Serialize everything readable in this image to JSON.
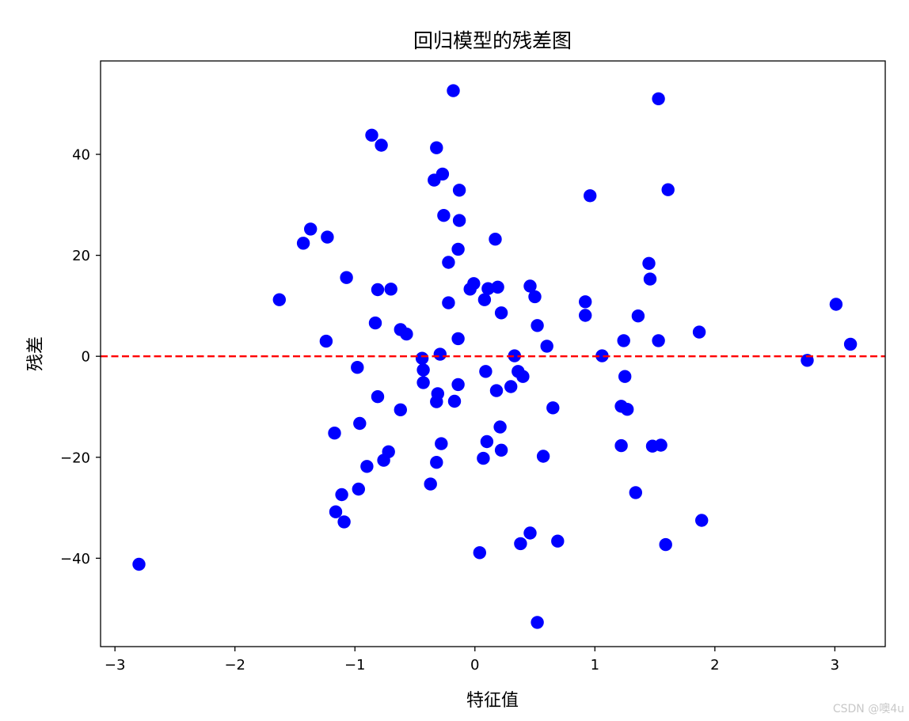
{
  "chart_data": {
    "type": "scatter",
    "title": "回归模型的残差图",
    "xlabel": "特征值",
    "ylabel": "残差",
    "xlim": [
      -3.12,
      3.42
    ],
    "ylim": [
      -57.5,
      58.5
    ],
    "xticks": [
      -3,
      -2,
      -1,
      0,
      1,
      2,
      3
    ],
    "xtick_labels": [
      "−3",
      "−2",
      "−1",
      "0",
      "1",
      "2",
      "3"
    ],
    "yticks": [
      -40,
      -20,
      0,
      20,
      40
    ],
    "ytick_labels": [
      "−40",
      "−20",
      "0",
      "20",
      "40"
    ],
    "grid": false,
    "marker_color": "#0000ff",
    "reference_line": {
      "y": 0,
      "color": "#ff0000",
      "style": "dashed"
    },
    "points": [
      [
        -2.8,
        -41.2
      ],
      [
        -1.63,
        11.2
      ],
      [
        -1.43,
        22.4
      ],
      [
        -1.37,
        25.2
      ],
      [
        -1.23,
        23.6
      ],
      [
        -1.24,
        3.0
      ],
      [
        -1.17,
        -15.2
      ],
      [
        -1.16,
        -30.8
      ],
      [
        -1.11,
        -27.4
      ],
      [
        -1.09,
        -32.8
      ],
      [
        -1.07,
        15.6
      ],
      [
        -0.98,
        -2.2
      ],
      [
        -0.96,
        -13.3
      ],
      [
        -0.97,
        -26.3
      ],
      [
        -0.9,
        -21.8
      ],
      [
        -0.86,
        43.8
      ],
      [
        -0.83,
        6.6
      ],
      [
        -0.81,
        13.2
      ],
      [
        -0.81,
        -8.0
      ],
      [
        -0.78,
        41.8
      ],
      [
        -0.76,
        -20.6
      ],
      [
        -0.72,
        -18.9
      ],
      [
        -0.7,
        13.3
      ],
      [
        -0.62,
        5.3
      ],
      [
        -0.62,
        -10.6
      ],
      [
        -0.57,
        4.4
      ],
      [
        -0.44,
        -0.4
      ],
      [
        -0.43,
        -2.7
      ],
      [
        -0.43,
        -5.2
      ],
      [
        -0.37,
        -25.3
      ],
      [
        -0.34,
        34.9
      ],
      [
        -0.32,
        41.3
      ],
      [
        -0.32,
        -9.0
      ],
      [
        -0.32,
        -21.0
      ],
      [
        -0.31,
        -7.4
      ],
      [
        -0.29,
        0.4
      ],
      [
        -0.28,
        -17.3
      ],
      [
        -0.27,
        36.1
      ],
      [
        -0.26,
        27.9
      ],
      [
        -0.22,
        18.6
      ],
      [
        -0.22,
        10.6
      ],
      [
        -0.18,
        52.6
      ],
      [
        -0.17,
        -8.9
      ],
      [
        -0.14,
        21.2
      ],
      [
        -0.14,
        3.5
      ],
      [
        -0.14,
        -5.6
      ],
      [
        -0.13,
        32.9
      ],
      [
        -0.13,
        26.9
      ],
      [
        -0.04,
        13.3
      ],
      [
        -0.01,
        14.4
      ],
      [
        0.04,
        -38.9
      ],
      [
        0.07,
        -20.2
      ],
      [
        0.08,
        11.2
      ],
      [
        0.09,
        -3.0
      ],
      [
        0.1,
        -16.9
      ],
      [
        0.11,
        13.4
      ],
      [
        0.17,
        23.2
      ],
      [
        0.18,
        -6.8
      ],
      [
        0.19,
        13.7
      ],
      [
        0.21,
        -14.0
      ],
      [
        0.22,
        -18.6
      ],
      [
        0.22,
        8.6
      ],
      [
        0.3,
        -6.0
      ],
      [
        0.33,
        0.1
      ],
      [
        0.36,
        -3.0
      ],
      [
        0.38,
        -37.1
      ],
      [
        0.4,
        -4.0
      ],
      [
        0.46,
        13.9
      ],
      [
        0.46,
        -35.0
      ],
      [
        0.5,
        11.8
      ],
      [
        0.52,
        6.1
      ],
      [
        0.52,
        -52.7
      ],
      [
        0.57,
        -19.8
      ],
      [
        0.6,
        2.0
      ],
      [
        0.65,
        -10.2
      ],
      [
        0.69,
        -36.6
      ],
      [
        0.92,
        10.8
      ],
      [
        0.92,
        8.1
      ],
      [
        0.96,
        31.8
      ],
      [
        1.06,
        0.1
      ],
      [
        1.22,
        -9.9
      ],
      [
        1.22,
        -17.7
      ],
      [
        1.24,
        3.1
      ],
      [
        1.25,
        -4.0
      ],
      [
        1.27,
        -10.5
      ],
      [
        1.34,
        -27.0
      ],
      [
        1.36,
        8.0
      ],
      [
        1.45,
        18.4
      ],
      [
        1.46,
        15.3
      ],
      [
        1.48,
        -17.8
      ],
      [
        1.53,
        51.0
      ],
      [
        1.53,
        3.1
      ],
      [
        1.55,
        -17.6
      ],
      [
        1.59,
        -37.3
      ],
      [
        1.61,
        33.0
      ],
      [
        1.87,
        4.8
      ],
      [
        1.89,
        -32.5
      ],
      [
        2.77,
        -0.8
      ],
      [
        3.01,
        10.3
      ],
      [
        3.13,
        2.4
      ]
    ]
  },
  "watermark": "CSDN @噢4u"
}
